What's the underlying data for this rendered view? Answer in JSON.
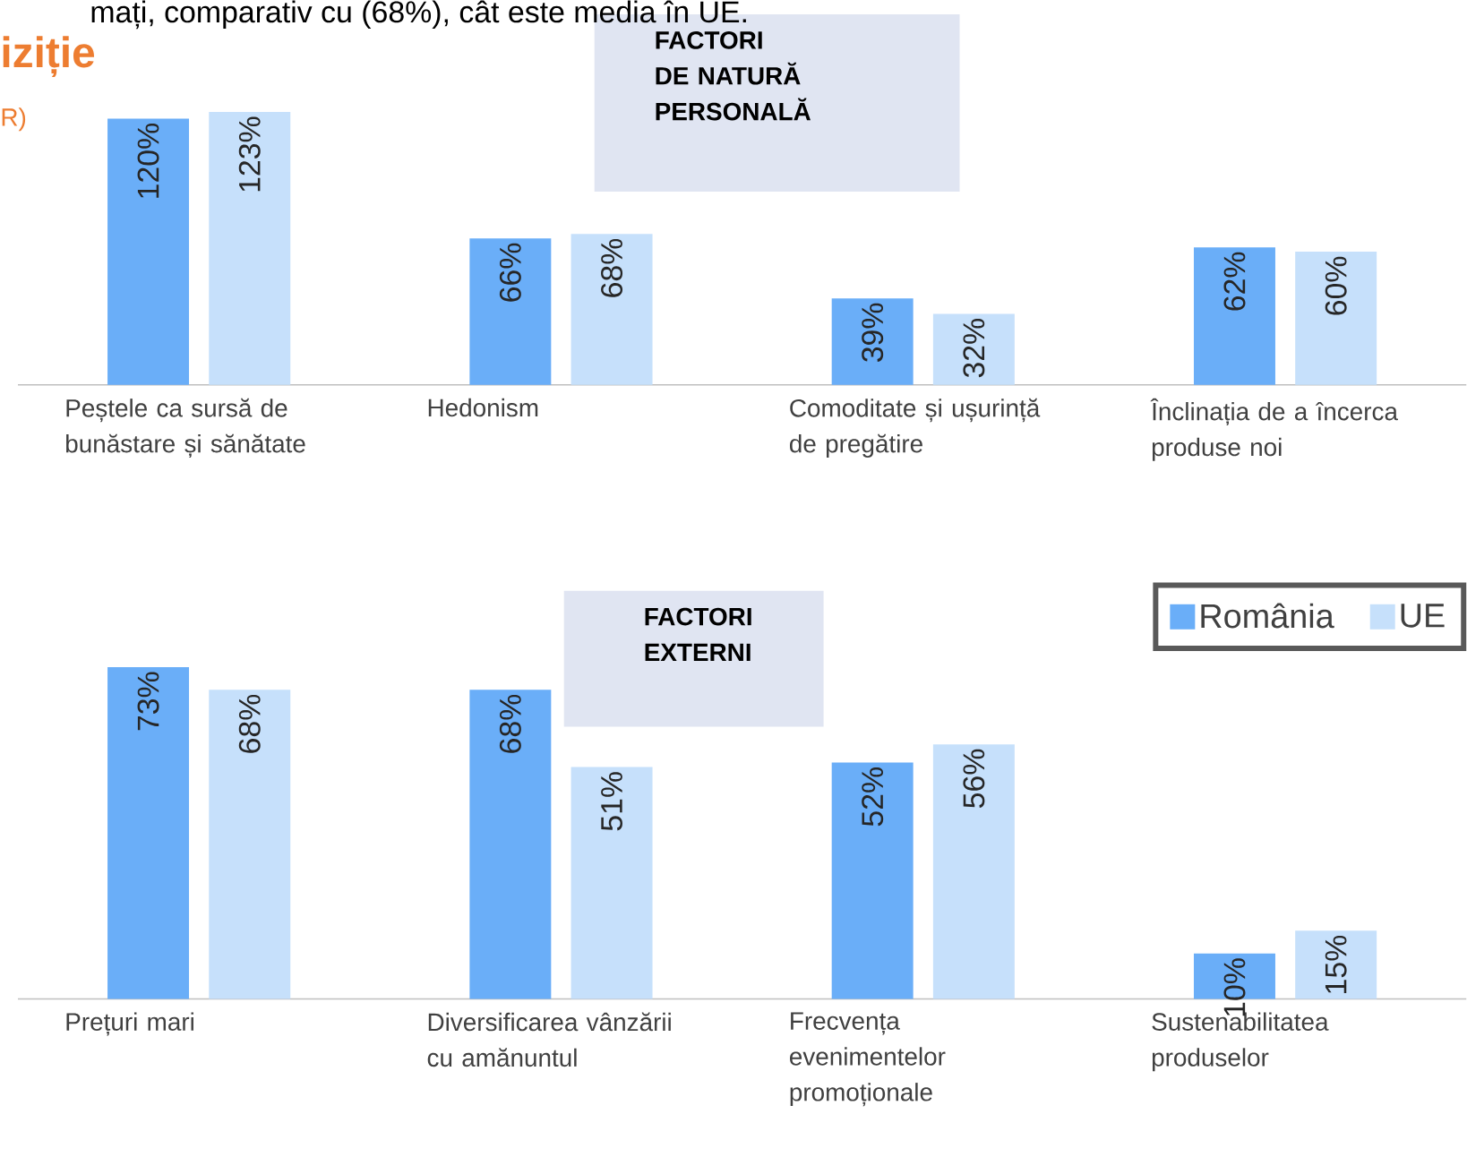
{
  "chart_data": [
    {
      "type": "bar",
      "title": "FACTORI DE NATURĂ PERSONALĂ",
      "annotations": [
        "mați, comparativ cu (68%), cât este media în UE.",
        "iziție",
        "R)"
      ],
      "categories": [
        "Peștele ca sursă de bunăstare și sănătate",
        "Hedonism",
        "Comoditate și ușurință de pregătire",
        "Înclinația de a încerca produse noi"
      ],
      "tick_labels": "x",
      "series": [
        {
          "color": "#6aaef8",
          "values": [
            120,
            66,
            39,
            62
          ],
          "value_labels": [
            "120%",
            "66%",
            "39%",
            "62%"
          ]
        },
        {
          "color": "#c6e0fb",
          "values": [
            123,
            68,
            32,
            60
          ],
          "value_labels": [
            "123%",
            "68%",
            "32%",
            "60%"
          ]
        }
      ]
    },
    {
      "type": "bar",
      "title": "FACTORI EXTERNI",
      "categories": [
        "Prețuri mari",
        "Diversificarea vânzării cu amănuntul",
        "Frecvența evenimentelor promoționale",
        "Sustenabilitatea produselor"
      ],
      "tick_labels": "x",
      "legend": "top right",
      "series": [
        {
          "name": "România",
          "color": "#6aaef8",
          "values": [
            73,
            68,
            52,
            10
          ],
          "value_labels": [
            "73%",
            "68%",
            "52%",
            "10%"
          ]
        },
        {
          "name": "UE",
          "color": "#c6e0fb",
          "values": [
            68,
            51,
            56,
            15
          ],
          "value_labels": [
            "68%",
            "51%",
            "56%",
            "15%"
          ]
        }
      ]
    }
  ]
}
